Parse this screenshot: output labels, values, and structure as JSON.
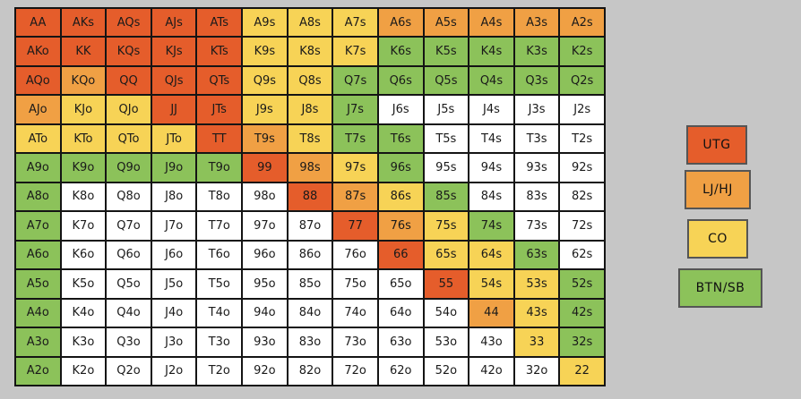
{
  "colors": {
    "UTG": "#e55d2b",
    "LJ/HJ": "#f0a044",
    "CO": "#f7d356",
    "BTN/SB": "#8cc25a",
    "fold": "#ffffff"
  },
  "legend": [
    {
      "label": "UTG",
      "key": "UTG"
    },
    {
      "label": "LJ/HJ",
      "key": "LJ/HJ"
    },
    {
      "label": "CO",
      "key": "CO"
    },
    {
      "label": "BTN/SB",
      "key": "BTN/SB"
    }
  ],
  "hands": [
    [
      "AA",
      "AKs",
      "AQs",
      "AJs",
      "ATs",
      "A9s",
      "A8s",
      "A7s",
      "A6s",
      "A5s",
      "A4s",
      "A3s",
      "A2s"
    ],
    [
      "AKo",
      "KK",
      "KQs",
      "KJs",
      "KTs",
      "K9s",
      "K8s",
      "K7s",
      "K6s",
      "K5s",
      "K4s",
      "K3s",
      "K2s"
    ],
    [
      "AQo",
      "KQo",
      "QQ",
      "QJs",
      "QTs",
      "Q9s",
      "Q8s",
      "Q7s",
      "Q6s",
      "Q5s",
      "Q4s",
      "Q3s",
      "Q2s"
    ],
    [
      "AJo",
      "KJo",
      "QJo",
      "JJ",
      "JTs",
      "J9s",
      "J8s",
      "J7s",
      "J6s",
      "J5s",
      "J4s",
      "J3s",
      "J2s"
    ],
    [
      "ATo",
      "KTo",
      "QTo",
      "JTo",
      "TT",
      "T9s",
      "T8s",
      "T7s",
      "T6s",
      "T5s",
      "T4s",
      "T3s",
      "T2s"
    ],
    [
      "A9o",
      "K9o",
      "Q9o",
      "J9o",
      "T9o",
      "99",
      "98s",
      "97s",
      "96s",
      "95s",
      "94s",
      "93s",
      "92s"
    ],
    [
      "A8o",
      "K8o",
      "Q8o",
      "J8o",
      "T8o",
      "98o",
      "88",
      "87s",
      "86s",
      "85s",
      "84s",
      "83s",
      "82s"
    ],
    [
      "A7o",
      "K7o",
      "Q7o",
      "J7o",
      "T7o",
      "97o",
      "87o",
      "77",
      "76s",
      "75s",
      "74s",
      "73s",
      "72s"
    ],
    [
      "A6o",
      "K6o",
      "Q6o",
      "J6o",
      "T6o",
      "96o",
      "86o",
      "76o",
      "66",
      "65s",
      "64s",
      "63s",
      "62s"
    ],
    [
      "A5o",
      "K5o",
      "Q5o",
      "J5o",
      "T5o",
      "95o",
      "85o",
      "75o",
      "65o",
      "55",
      "54s",
      "53s",
      "52s"
    ],
    [
      "A4o",
      "K4o",
      "Q4o",
      "J4o",
      "T4o",
      "94o",
      "84o",
      "74o",
      "64o",
      "54o",
      "44",
      "43s",
      "42s"
    ],
    [
      "A3o",
      "K3o",
      "Q3o",
      "J3o",
      "T3o",
      "93o",
      "83o",
      "73o",
      "63o",
      "53o",
      "43o",
      "33",
      "32s"
    ],
    [
      "A2o",
      "K2o",
      "Q2o",
      "J2o",
      "T2o",
      "92o",
      "82o",
      "72o",
      "62o",
      "52o",
      "42o",
      "32o",
      "22"
    ]
  ],
  "categories": [
    [
      "UTG",
      "UTG",
      "UTG",
      "UTG",
      "UTG",
      "CO",
      "CO",
      "CO",
      "LJ/HJ",
      "LJ/HJ",
      "LJ/HJ",
      "LJ/HJ",
      "LJ/HJ"
    ],
    [
      "UTG",
      "UTG",
      "UTG",
      "UTG",
      "UTG",
      "CO",
      "CO",
      "CO",
      "BTN/SB",
      "BTN/SB",
      "BTN/SB",
      "BTN/SB",
      "BTN/SB"
    ],
    [
      "UTG",
      "LJ/HJ",
      "UTG",
      "UTG",
      "UTG",
      "CO",
      "CO",
      "BTN/SB",
      "BTN/SB",
      "BTN/SB",
      "BTN/SB",
      "BTN/SB",
      "BTN/SB"
    ],
    [
      "LJ/HJ",
      "CO",
      "CO",
      "UTG",
      "UTG",
      "CO",
      "CO",
      "BTN/SB",
      "fold",
      "fold",
      "fold",
      "fold",
      "fold"
    ],
    [
      "CO",
      "CO",
      "CO",
      "CO",
      "UTG",
      "LJ/HJ",
      "CO",
      "BTN/SB",
      "BTN/SB",
      "fold",
      "fold",
      "fold",
      "fold"
    ],
    [
      "BTN/SB",
      "BTN/SB",
      "BTN/SB",
      "BTN/SB",
      "BTN/SB",
      "UTG",
      "LJ/HJ",
      "CO",
      "BTN/SB",
      "fold",
      "fold",
      "fold",
      "fold"
    ],
    [
      "BTN/SB",
      "fold",
      "fold",
      "fold",
      "fold",
      "fold",
      "UTG",
      "LJ/HJ",
      "CO",
      "BTN/SB",
      "fold",
      "fold",
      "fold"
    ],
    [
      "BTN/SB",
      "fold",
      "fold",
      "fold",
      "fold",
      "fold",
      "fold",
      "UTG",
      "LJ/HJ",
      "CO",
      "BTN/SB",
      "fold",
      "fold"
    ],
    [
      "BTN/SB",
      "fold",
      "fold",
      "fold",
      "fold",
      "fold",
      "fold",
      "fold",
      "UTG",
      "CO",
      "CO",
      "BTN/SB",
      "fold"
    ],
    [
      "BTN/SB",
      "fold",
      "fold",
      "fold",
      "fold",
      "fold",
      "fold",
      "fold",
      "fold",
      "UTG",
      "CO",
      "CO",
      "BTN/SB"
    ],
    [
      "BTN/SB",
      "fold",
      "fold",
      "fold",
      "fold",
      "fold",
      "fold",
      "fold",
      "fold",
      "fold",
      "LJ/HJ",
      "CO",
      "BTN/SB"
    ],
    [
      "BTN/SB",
      "fold",
      "fold",
      "fold",
      "fold",
      "fold",
      "fold",
      "fold",
      "fold",
      "fold",
      "fold",
      "CO",
      "BTN/SB"
    ],
    [
      "BTN/SB",
      "fold",
      "fold",
      "fold",
      "fold",
      "fold",
      "fold",
      "fold",
      "fold",
      "fold",
      "fold",
      "fold",
      "CO"
    ]
  ]
}
